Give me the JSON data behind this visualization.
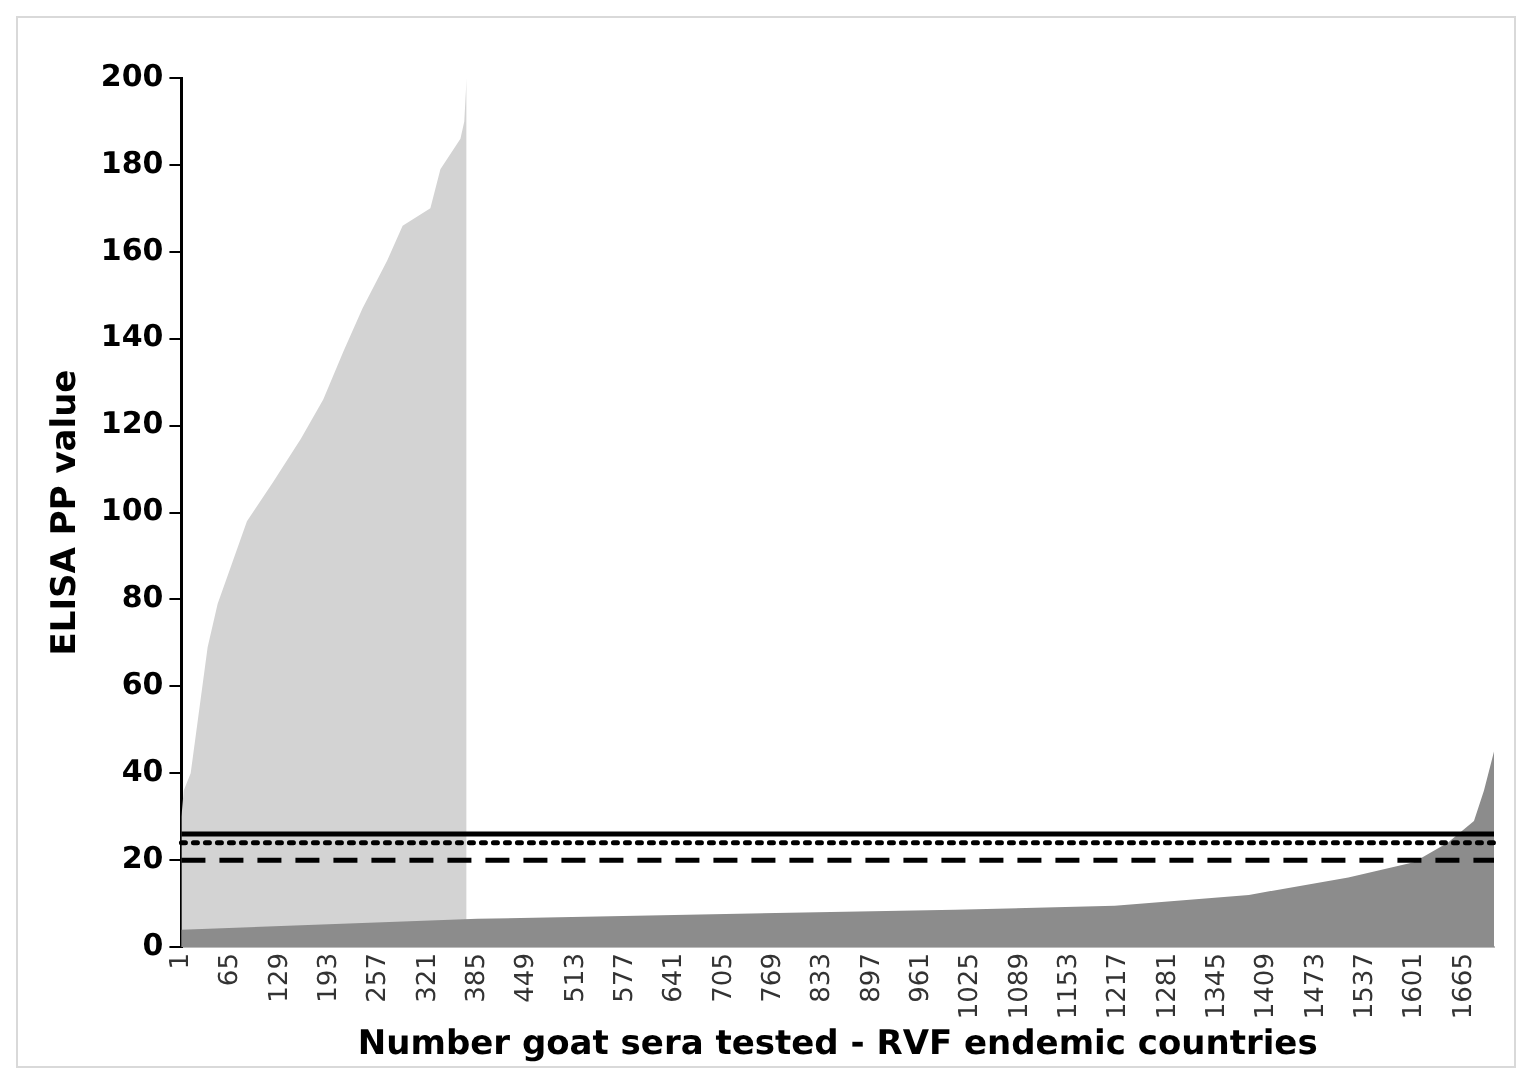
{
  "chart_data": {
    "type": "area",
    "xlabel": "Number goat sera tested - RVF endemic countries",
    "ylabel": "ELISA PP value",
    "xlim": [
      1,
      1704
    ],
    "xticks": [
      1,
      65,
      129,
      193,
      257,
      321,
      385,
      449,
      513,
      577,
      641,
      705,
      769,
      833,
      897,
      961,
      1025,
      1089,
      1153,
      1217,
      1281,
      1345,
      1409,
      1473,
      1537,
      1601,
      1665
    ],
    "ylim": [
      0,
      200
    ],
    "yticks": [
      0,
      20,
      40,
      60,
      80,
      100,
      120,
      140,
      160,
      180,
      200
    ],
    "grid": false,
    "legend": false,
    "series": [
      {
        "color": "#d3d3d3",
        "x": [
          1,
          4,
          13,
          35,
          48,
          66,
          86,
          120,
          156,
          185,
          211,
          236,
          268,
          288,
          324,
          337,
          363,
          368,
          371
        ],
        "values": [
          30,
          36,
          40,
          69,
          79,
          88,
          98,
          107,
          117,
          126,
          137,
          147,
          158,
          166,
          170,
          179,
          186,
          190,
          200
        ]
      },
      {
        "color": "#8c8c8c",
        "x": [
          1,
          385,
          1005,
          1212,
          1386,
          1515,
          1600,
          1644,
          1678,
          1691,
          1704
        ],
        "values": [
          4,
          6.5,
          8.6,
          9.5,
          12,
          16,
          19.5,
          24,
          29,
          36,
          45
        ]
      }
    ],
    "ref_lines": [
      {
        "axis": "y",
        "value": 26,
        "line_style": "solid",
        "color": "#000000"
      },
      {
        "axis": "y",
        "value": 24,
        "line_style": "dotted",
        "color": "#000000"
      },
      {
        "axis": "y",
        "value": 20,
        "line_style": "dashed",
        "color": "#000000"
      }
    ]
  }
}
